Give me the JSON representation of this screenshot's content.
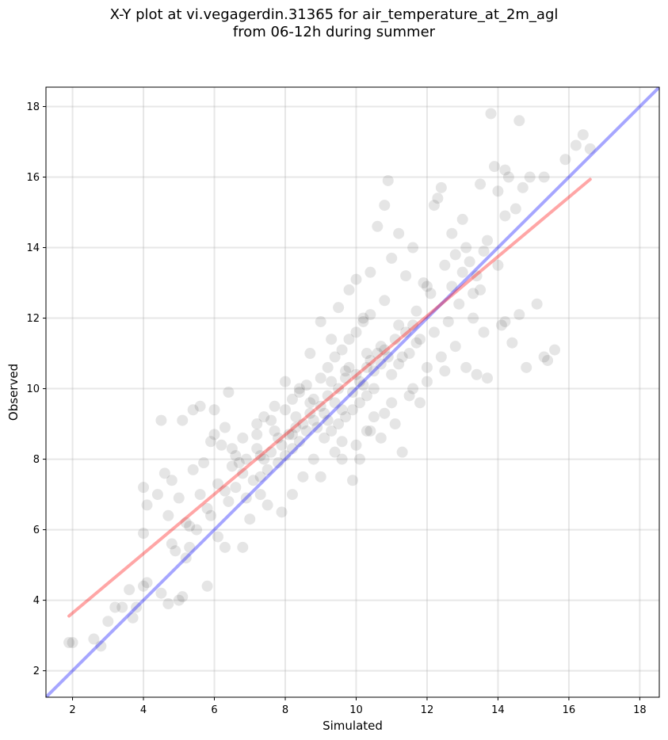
{
  "chart_data": {
    "type": "scatter",
    "title": "X-Y plot at vi.vegagerdin.31365 for air_temperature_at_2m_agl",
    "subtitle": "from 06-12h during summer",
    "xlabel": "Simulated",
    "ylabel": "Observed",
    "xlim": [
      1.25,
      18.55
    ],
    "ylim": [
      1.25,
      18.55
    ],
    "xticks": [
      "2",
      "4",
      "6",
      "8",
      "10",
      "12",
      "14",
      "16",
      "18"
    ],
    "yticks": [
      "2",
      "4",
      "6",
      "8",
      "10",
      "12",
      "14",
      "16",
      "18"
    ],
    "grid": true,
    "point_color": "#000000",
    "point_opacity": 0.1,
    "points": [
      [
        1.9,
        2.8
      ],
      [
        2.0,
        2.8
      ],
      [
        2.6,
        2.9
      ],
      [
        2.8,
        2.7
      ],
      [
        3.0,
        3.4
      ],
      [
        3.2,
        3.8
      ],
      [
        3.4,
        3.8
      ],
      [
        3.6,
        4.3
      ],
      [
        3.7,
        3.5
      ],
      [
        3.8,
        3.8
      ],
      [
        4.0,
        4.4
      ],
      [
        4.1,
        4.5
      ],
      [
        4.0,
        5.9
      ],
      [
        4.0,
        7.2
      ],
      [
        4.1,
        6.7
      ],
      [
        4.4,
        7.0
      ],
      [
        4.5,
        9.1
      ],
      [
        4.5,
        4.2
      ],
      [
        4.6,
        7.6
      ],
      [
        4.7,
        6.4
      ],
      [
        4.8,
        7.4
      ],
      [
        4.7,
        3.9
      ],
      [
        4.9,
        5.4
      ],
      [
        5.0,
        4.0
      ],
      [
        5.1,
        4.1
      ],
      [
        5.1,
        9.1
      ],
      [
        5.2,
        5.2
      ],
      [
        5.3,
        5.5
      ],
      [
        5.4,
        9.4
      ],
      [
        5.5,
        6.0
      ],
      [
        5.6,
        9.5
      ],
      [
        5.8,
        4.4
      ],
      [
        5.9,
        8.5
      ],
      [
        6.0,
        9.4
      ],
      [
        6.1,
        5.8
      ],
      [
        6.3,
        5.5
      ],
      [
        6.4,
        9.9
      ],
      [
        6.6,
        8.1
      ],
      [
        6.8,
        5.5
      ],
      [
        7.0,
        6.3
      ],
      [
        7.2,
        9.0
      ],
      [
        7.4,
        9.2
      ],
      [
        7.5,
        6.7
      ],
      [
        7.7,
        8.8
      ],
      [
        7.9,
        6.5
      ],
      [
        8.0,
        10.2
      ],
      [
        8.2,
        7.0
      ],
      [
        8.4,
        10.0
      ],
      [
        8.5,
        7.5
      ],
      [
        8.7,
        11.0
      ],
      [
        8.8,
        8.0
      ],
      [
        9.0,
        11.9
      ],
      [
        9.0,
        7.5
      ],
      [
        9.3,
        11.4
      ],
      [
        9.4,
        8.2
      ],
      [
        9.5,
        12.3
      ],
      [
        9.6,
        8.5
      ],
      [
        9.8,
        12.8
      ],
      [
        9.9,
        7.4
      ],
      [
        10.0,
        13.1
      ],
      [
        10.1,
        8.0
      ],
      [
        10.2,
        12.0
      ],
      [
        10.3,
        8.8
      ],
      [
        10.4,
        13.3
      ],
      [
        10.5,
        9.2
      ],
      [
        10.6,
        14.6
      ],
      [
        10.7,
        8.6
      ],
      [
        10.8,
        15.2
      ],
      [
        10.9,
        15.9
      ],
      [
        11.0,
        13.7
      ],
      [
        11.1,
        9.0
      ],
      [
        11.2,
        14.4
      ],
      [
        11.3,
        8.2
      ],
      [
        11.4,
        13.2
      ],
      [
        11.5,
        9.8
      ],
      [
        11.6,
        14.0
      ],
      [
        11.8,
        9.6
      ],
      [
        11.9,
        13.0
      ],
      [
        12.0,
        10.2
      ],
      [
        12.2,
        15.2
      ],
      [
        12.3,
        15.4
      ],
      [
        12.4,
        15.7
      ],
      [
        12.5,
        10.5
      ],
      [
        12.7,
        14.4
      ],
      [
        12.8,
        11.2
      ],
      [
        13.0,
        14.8
      ],
      [
        13.1,
        10.6
      ],
      [
        13.3,
        12.0
      ],
      [
        13.4,
        10.4
      ],
      [
        13.5,
        15.8
      ],
      [
        13.6,
        11.6
      ],
      [
        13.7,
        10.3
      ],
      [
        13.8,
        17.8
      ],
      [
        13.9,
        16.3
      ],
      [
        14.0,
        15.6
      ],
      [
        14.1,
        11.8
      ],
      [
        14.2,
        16.2
      ],
      [
        14.3,
        16.0
      ],
      [
        14.4,
        11.3
      ],
      [
        14.5,
        15.1
      ],
      [
        14.6,
        17.6
      ],
      [
        14.7,
        15.7
      ],
      [
        14.8,
        10.6
      ],
      [
        14.9,
        16.0
      ],
      [
        15.1,
        12.4
      ],
      [
        15.3,
        16.0
      ],
      [
        15.3,
        10.9
      ],
      [
        15.4,
        10.8
      ],
      [
        15.6,
        11.1
      ],
      [
        15.9,
        16.5
      ],
      [
        16.2,
        16.9
      ],
      [
        16.4,
        17.2
      ],
      [
        16.6,
        16.8
      ],
      [
        14.6,
        12.1
      ],
      [
        14.2,
        11.9
      ],
      [
        14.0,
        13.5
      ],
      [
        13.5,
        12.8
      ],
      [
        13.0,
        13.3
      ],
      [
        12.6,
        11.9
      ],
      [
        12.1,
        12.7
      ],
      [
        11.7,
        11.3
      ],
      [
        11.2,
        11.8
      ],
      [
        10.8,
        12.5
      ],
      [
        10.3,
        11.0
      ],
      [
        9.8,
        10.6
      ],
      [
        9.3,
        10.2
      ],
      [
        8.8,
        9.7
      ],
      [
        8.3,
        9.2
      ],
      [
        7.8,
        8.6
      ],
      [
        7.3,
        8.1
      ],
      [
        6.8,
        7.6
      ],
      [
        6.3,
        7.1
      ],
      [
        5.8,
        6.6
      ],
      [
        5.3,
        6.1
      ],
      [
        4.8,
        5.6
      ],
      [
        6.2,
        8.4
      ],
      [
        6.7,
        7.9
      ],
      [
        7.2,
        8.3
      ],
      [
        7.7,
        9.5
      ],
      [
        8.2,
        8.7
      ],
      [
        8.7,
        9.6
      ],
      [
        9.2,
        9.1
      ],
      [
        9.7,
        10.5
      ],
      [
        10.2,
        10.1
      ],
      [
        10.7,
        11.2
      ],
      [
        11.2,
        10.7
      ],
      [
        11.7,
        12.2
      ],
      [
        12.2,
        11.6
      ],
      [
        12.7,
        12.9
      ],
      [
        13.2,
        13.6
      ],
      [
        13.7,
        14.2
      ],
      [
        14.2,
        14.9
      ],
      [
        9.0,
        9.5
      ],
      [
        9.1,
        9.3
      ],
      [
        9.2,
        9.8
      ],
      [
        9.4,
        9.6
      ],
      [
        9.5,
        10.0
      ],
      [
        9.6,
        9.4
      ],
      [
        9.7,
        10.3
      ],
      [
        9.9,
        9.9
      ],
      [
        10.0,
        10.4
      ],
      [
        10.1,
        10.2
      ],
      [
        10.3,
        10.6
      ],
      [
        10.4,
        10.8
      ],
      [
        10.5,
        10.5
      ],
      [
        10.6,
        11.0
      ],
      [
        10.7,
        10.7
      ],
      [
        10.8,
        11.1
      ],
      [
        8.5,
        9.0
      ],
      [
        8.6,
        8.8
      ],
      [
        8.7,
        9.3
      ],
      [
        8.8,
        9.1
      ],
      [
        8.9,
        8.9
      ],
      [
        8.4,
        8.5
      ],
      [
        8.3,
        8.9
      ],
      [
        8.2,
        8.3
      ],
      [
        8.1,
        8.7
      ],
      [
        8.0,
        8.1
      ],
      [
        7.9,
        8.4
      ],
      [
        7.8,
        7.9
      ],
      [
        7.6,
        8.2
      ],
      [
        7.5,
        7.7
      ],
      [
        7.4,
        8.0
      ],
      [
        7.3,
        7.5
      ],
      [
        10.9,
        10.9
      ],
      [
        11.0,
        10.4
      ],
      [
        11.1,
        11.4
      ],
      [
        11.3,
        10.9
      ],
      [
        11.4,
        11.6
      ],
      [
        11.5,
        11.0
      ],
      [
        11.6,
        11.8
      ],
      [
        11.8,
        11.4
      ],
      [
        9.1,
        8.6
      ],
      [
        9.3,
        8.8
      ],
      [
        9.5,
        9.0
      ],
      [
        9.7,
        9.2
      ],
      [
        9.9,
        9.4
      ],
      [
        10.1,
        9.6
      ],
      [
        10.3,
        9.8
      ],
      [
        10.5,
        10.0
      ],
      [
        9.0,
        10.3
      ],
      [
        9.2,
        10.6
      ],
      [
        9.4,
        10.9
      ],
      [
        9.6,
        11.1
      ],
      [
        9.8,
        11.4
      ],
      [
        10.0,
        11.6
      ],
      [
        10.2,
        11.9
      ],
      [
        10.4,
        12.1
      ],
      [
        8.0,
        9.4
      ],
      [
        8.2,
        9.7
      ],
      [
        8.4,
        9.9
      ],
      [
        8.6,
        10.1
      ],
      [
        7.6,
        9.1
      ],
      [
        7.2,
        8.7
      ],
      [
        6.9,
        8.0
      ],
      [
        6.5,
        7.8
      ],
      [
        9.6,
        8.0
      ],
      [
        10.0,
        8.4
      ],
      [
        10.4,
        8.8
      ],
      [
        10.8,
        9.3
      ],
      [
        11.0,
        9.6
      ],
      [
        11.6,
        10.0
      ],
      [
        12.0,
        10.6
      ],
      [
        12.4,
        10.9
      ],
      [
        5.6,
        7.0
      ],
      [
        5.9,
        6.4
      ],
      [
        6.1,
        7.3
      ],
      [
        6.4,
        6.8
      ],
      [
        6.6,
        7.2
      ],
      [
        6.9,
        6.9
      ],
      [
        7.1,
        7.4
      ],
      [
        7.3,
        7.0
      ],
      [
        5.0,
        6.9
      ],
      [
        5.2,
        6.2
      ],
      [
        5.4,
        7.7
      ],
      [
        5.7,
        7.9
      ],
      [
        6.0,
        8.7
      ],
      [
        6.3,
        8.9
      ],
      [
        6.5,
        8.3
      ],
      [
        6.8,
        8.6
      ],
      [
        12.8,
        13.8
      ],
      [
        13.1,
        14.0
      ],
      [
        13.4,
        13.2
      ],
      [
        13.6,
        13.9
      ],
      [
        12.5,
        13.5
      ],
      [
        12.9,
        12.4
      ],
      [
        13.3,
        12.7
      ],
      [
        12.0,
        12.9
      ]
    ]
  }
}
